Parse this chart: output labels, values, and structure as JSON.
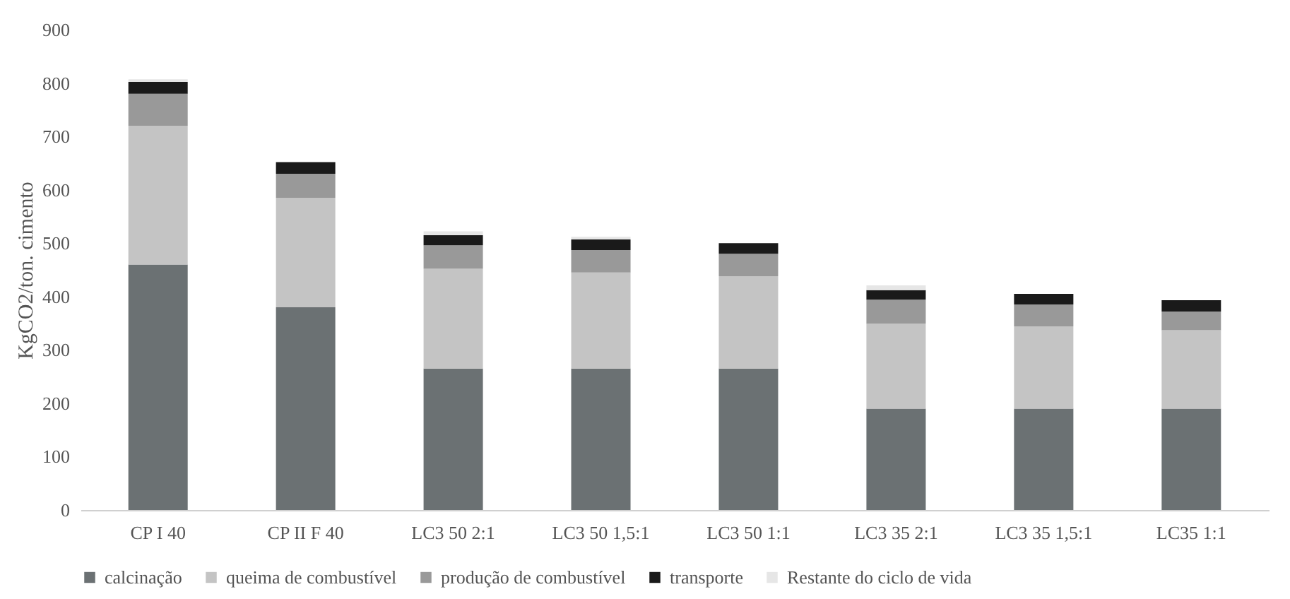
{
  "chart_data": {
    "type": "bar",
    "stacked": true,
    "ylabel": "KgCO2/ton. cimento",
    "categories": [
      "CP I 40",
      "CP II F 40",
      "LC3 50 2:1",
      "LC3 50 1,5:1",
      "LC3 50 1:1",
      "LC3 35 2:1",
      "LC3 35 1,5:1",
      "LC35 1:1"
    ],
    "series": [
      {
        "name": "calcinação",
        "color": "#6b7173",
        "values": [
          460,
          380,
          265,
          265,
          265,
          190,
          190,
          190
        ]
      },
      {
        "name": "queima de combustível",
        "color": "#c4c4c4",
        "values": [
          260,
          205,
          187,
          180,
          173,
          159,
          154,
          147
        ]
      },
      {
        "name": "produção de combustível",
        "color": "#999999",
        "values": [
          60,
          45,
          44,
          42,
          42,
          45,
          41,
          35
        ]
      },
      {
        "name": "transporte",
        "color": "#1a1a1a",
        "values": [
          22,
          22,
          19,
          20,
          20,
          18,
          20,
          21
        ]
      },
      {
        "name": "Restante do ciclo de vida",
        "color": "#e6e6e6",
        "values": [
          5,
          null,
          7,
          5,
          null,
          9,
          null,
          null
        ]
      }
    ],
    "ylim": [
      0,
      900
    ],
    "yticks": [
      0,
      100,
      200,
      300,
      400,
      500,
      600,
      700,
      800,
      900
    ],
    "grid": false,
    "legend": "bottom"
  }
}
